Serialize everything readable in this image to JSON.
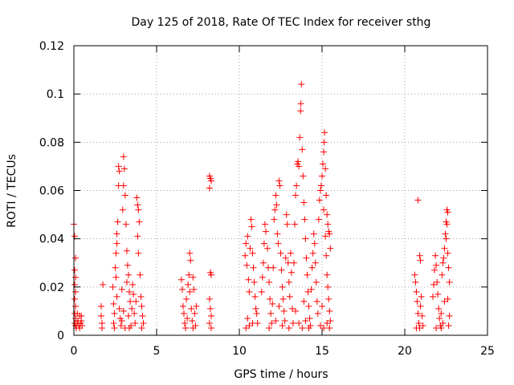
{
  "chart_data": {
    "type": "scatter",
    "title": "Day 125 of 2018, Rate Of TEC Index for receiver sthg",
    "xlabel": "GPS time / hours",
    "ylabel": "ROTI / TECUs",
    "xlim": [
      0,
      25
    ],
    "ylim": [
      0,
      0.12
    ],
    "xticks": [
      0,
      5,
      10,
      15,
      20,
      25
    ],
    "xtick_labels": [
      "0",
      "5",
      "10",
      "15",
      "20",
      "25"
    ],
    "yticks": [
      0,
      0.02,
      0.04,
      0.06,
      0.08,
      0.1,
      0.12
    ],
    "ytick_labels": [
      "0",
      "0.02",
      "0.04",
      "0.06",
      "0.08",
      "0.1",
      "0.12"
    ],
    "grid": true,
    "marker": "+",
    "color": "#ff0000",
    "series": [
      {
        "name": "ROTI",
        "points": [
          [
            0.0,
            0.046
          ],
          [
            0.05,
            0.041
          ],
          [
            0.1,
            0.032
          ],
          [
            0.05,
            0.027
          ],
          [
            0.1,
            0.024
          ],
          [
            0.05,
            0.021
          ],
          [
            0.1,
            0.018
          ],
          [
            0.05,
            0.015
          ],
          [
            0.1,
            0.012
          ],
          [
            0.05,
            0.009
          ],
          [
            0.1,
            0.007
          ],
          [
            0.05,
            0.005
          ],
          [
            0.1,
            0.004
          ],
          [
            0.15,
            0.003
          ],
          [
            0.2,
            0.009
          ],
          [
            0.25,
            0.006
          ],
          [
            0.3,
            0.004
          ],
          [
            0.35,
            0.008
          ],
          [
            0.4,
            0.005
          ],
          [
            0.45,
            0.006
          ],
          [
            0.5,
            0.004
          ],
          [
            0.45,
            0.008
          ],
          [
            0.35,
            0.003
          ],
          [
            0.2,
            0.005
          ],
          [
            1.65,
            0.012
          ],
          [
            1.65,
            0.008
          ],
          [
            1.7,
            0.005
          ],
          [
            1.75,
            0.021
          ],
          [
            1.7,
            0.003
          ],
          [
            2.35,
            0.02
          ],
          [
            2.4,
            0.013
          ],
          [
            2.45,
            0.009
          ],
          [
            2.4,
            0.005
          ],
          [
            2.45,
            0.003
          ],
          [
            2.5,
            0.028
          ],
          [
            2.55,
            0.034
          ],
          [
            2.6,
            0.038
          ],
          [
            2.6,
            0.042
          ],
          [
            2.65,
            0.047
          ],
          [
            2.55,
            0.024
          ],
          [
            2.6,
            0.016
          ],
          [
            2.7,
            0.07
          ],
          [
            2.75,
            0.068
          ],
          [
            2.7,
            0.062
          ],
          [
            2.75,
            0.011
          ],
          [
            2.8,
            0.007
          ],
          [
            2.85,
            0.004
          ],
          [
            2.9,
            0.019
          ],
          [
            2.95,
            0.052
          ],
          [
            3.0,
            0.062
          ],
          [
            3.0,
            0.074
          ],
          [
            3.05,
            0.069
          ],
          [
            3.1,
            0.058
          ],
          [
            3.15,
            0.046
          ],
          [
            3.2,
            0.035
          ],
          [
            3.25,
            0.029
          ],
          [
            3.3,
            0.025
          ],
          [
            3.2,
            0.022
          ],
          [
            3.35,
            0.018
          ],
          [
            3.4,
            0.014
          ],
          [
            3.3,
            0.008
          ],
          [
            3.45,
            0.004
          ],
          [
            3.35,
            0.003
          ],
          [
            3.5,
            0.011
          ],
          [
            3.55,
            0.021
          ],
          [
            3.6,
            0.017
          ],
          [
            3.65,
            0.009
          ],
          [
            3.7,
            0.005
          ],
          [
            3.75,
            0.014
          ],
          [
            3.8,
            0.057
          ],
          [
            3.85,
            0.054
          ],
          [
            3.9,
            0.052
          ],
          [
            3.95,
            0.047
          ],
          [
            3.85,
            0.041
          ],
          [
            3.9,
            0.034
          ],
          [
            4.0,
            0.025
          ],
          [
            4.05,
            0.016
          ],
          [
            4.1,
            0.012
          ],
          [
            4.15,
            0.008
          ],
          [
            4.2,
            0.005
          ],
          [
            4.1,
            0.003
          ],
          [
            3.0,
            0.01
          ],
          [
            3.1,
            0.003
          ],
          [
            2.9,
            0.006
          ],
          [
            6.5,
            0.023
          ],
          [
            6.55,
            0.019
          ],
          [
            6.6,
            0.012
          ],
          [
            6.65,
            0.009
          ],
          [
            6.7,
            0.005
          ],
          [
            6.75,
            0.003
          ],
          [
            6.8,
            0.015
          ],
          [
            6.85,
            0.007
          ],
          [
            6.9,
            0.021
          ],
          [
            6.95,
            0.025
          ],
          [
            7.0,
            0.034
          ],
          [
            7.05,
            0.031
          ],
          [
            7.0,
            0.018
          ],
          [
            7.1,
            0.011
          ],
          [
            7.15,
            0.006
          ],
          [
            7.2,
            0.024
          ],
          [
            7.25,
            0.019
          ],
          [
            7.3,
            0.009
          ],
          [
            7.35,
            0.004
          ],
          [
            7.4,
            0.012
          ],
          [
            7.2,
            0.003
          ],
          [
            8.2,
            0.066
          ],
          [
            8.25,
            0.065
          ],
          [
            8.3,
            0.064
          ],
          [
            8.2,
            0.061
          ],
          [
            8.25,
            0.026
          ],
          [
            8.3,
            0.025
          ],
          [
            8.2,
            0.015
          ],
          [
            8.25,
            0.011
          ],
          [
            8.3,
            0.008
          ],
          [
            8.2,
            0.005
          ],
          [
            8.3,
            0.003
          ],
          [
            10.35,
            0.033
          ],
          [
            10.4,
            0.038
          ],
          [
            10.45,
            0.029
          ],
          [
            10.5,
            0.041
          ],
          [
            10.55,
            0.023
          ],
          [
            10.6,
            0.018
          ],
          [
            10.65,
            0.036
          ],
          [
            10.7,
            0.048
          ],
          [
            10.75,
            0.045
          ],
          [
            10.8,
            0.034
          ],
          [
            10.85,
            0.028
          ],
          [
            10.9,
            0.022
          ],
          [
            10.95,
            0.016
          ],
          [
            11.0,
            0.011
          ],
          [
            10.5,
            0.007
          ],
          [
            10.6,
            0.004
          ],
          [
            10.4,
            0.003
          ],
          [
            10.8,
            0.005
          ],
          [
            11.05,
            0.009
          ],
          [
            11.1,
            0.005
          ],
          [
            11.35,
            0.018
          ],
          [
            11.4,
            0.024
          ],
          [
            11.45,
            0.03
          ],
          [
            11.5,
            0.038
          ],
          [
            11.55,
            0.046
          ],
          [
            11.6,
            0.043
          ],
          [
            11.7,
            0.036
          ],
          [
            11.75,
            0.028
          ],
          [
            11.8,
            0.022
          ],
          [
            11.85,
            0.015
          ],
          [
            11.9,
            0.009
          ],
          [
            11.95,
            0.005
          ],
          [
            12.0,
            0.013
          ],
          [
            12.05,
            0.028
          ],
          [
            12.1,
            0.048
          ],
          [
            12.15,
            0.052
          ],
          [
            12.2,
            0.058
          ],
          [
            12.25,
            0.054
          ],
          [
            12.3,
            0.042
          ],
          [
            12.35,
            0.038
          ],
          [
            12.4,
            0.064
          ],
          [
            12.45,
            0.062
          ],
          [
            12.5,
            0.034
          ],
          [
            12.55,
            0.027
          ],
          [
            12.6,
            0.02
          ],
          [
            12.65,
            0.015
          ],
          [
            12.7,
            0.01
          ],
          [
            12.75,
            0.006
          ],
          [
            12.8,
            0.032
          ],
          [
            12.85,
            0.05
          ],
          [
            12.9,
            0.046
          ],
          [
            12.95,
            0.03
          ],
          [
            13.0,
            0.022
          ],
          [
            13.05,
            0.016
          ],
          [
            13.1,
            0.034
          ],
          [
            13.15,
            0.026
          ],
          [
            13.2,
            0.011
          ],
          [
            13.25,
            0.005
          ],
          [
            12.2,
            0.006
          ],
          [
            11.8,
            0.003
          ],
          [
            12.6,
            0.004
          ],
          [
            13.0,
            0.003
          ],
          [
            12.4,
            0.012
          ],
          [
            13.3,
            0.03
          ],
          [
            13.35,
            0.046
          ],
          [
            13.4,
            0.058
          ],
          [
            13.45,
            0.062
          ],
          [
            13.5,
            0.071
          ],
          [
            13.55,
            0.072
          ],
          [
            13.6,
            0.07
          ],
          [
            13.65,
            0.082
          ],
          [
            13.7,
            0.093
          ],
          [
            13.72,
            0.096
          ],
          [
            13.75,
            0.104
          ],
          [
            13.8,
            0.077
          ],
          [
            13.85,
            0.066
          ],
          [
            13.9,
            0.055
          ],
          [
            13.95,
            0.048
          ],
          [
            14.0,
            0.04
          ],
          [
            14.05,
            0.032
          ],
          [
            14.1,
            0.025
          ],
          [
            14.15,
            0.018
          ],
          [
            14.2,
            0.012
          ],
          [
            14.25,
            0.007
          ],
          [
            14.3,
            0.004
          ],
          [
            14.35,
            0.019
          ],
          [
            14.4,
            0.028
          ],
          [
            14.45,
            0.034
          ],
          [
            14.5,
            0.042
          ],
          [
            14.55,
            0.038
          ],
          [
            14.6,
            0.03
          ],
          [
            14.65,
            0.022
          ],
          [
            14.7,
            0.014
          ],
          [
            14.75,
            0.009
          ],
          [
            13.6,
            0.005
          ],
          [
            13.8,
            0.003
          ],
          [
            14.0,
            0.006
          ],
          [
            13.4,
            0.01
          ],
          [
            13.9,
            0.014
          ],
          [
            14.2,
            0.003
          ],
          [
            14.8,
            0.048
          ],
          [
            14.85,
            0.056
          ],
          [
            14.9,
            0.06
          ],
          [
            14.95,
            0.062
          ],
          [
            15.0,
            0.066
          ],
          [
            15.05,
            0.071
          ],
          [
            15.1,
            0.076
          ],
          [
            15.12,
            0.08
          ],
          [
            15.15,
            0.084
          ],
          [
            15.2,
            0.069
          ],
          [
            15.25,
            0.058
          ],
          [
            15.3,
            0.05
          ],
          [
            15.35,
            0.046
          ],
          [
            15.4,
            0.043
          ],
          [
            15.45,
            0.042
          ],
          [
            15.5,
            0.036
          ],
          [
            15.1,
            0.052
          ],
          [
            15.2,
            0.041
          ],
          [
            15.25,
            0.033
          ],
          [
            15.3,
            0.025
          ],
          [
            15.35,
            0.02
          ],
          [
            15.4,
            0.015
          ],
          [
            15.45,
            0.01
          ],
          [
            15.5,
            0.006
          ],
          [
            14.9,
            0.004
          ],
          [
            15.1,
            0.003
          ],
          [
            15.3,
            0.005
          ],
          [
            15.0,
            0.012
          ],
          [
            15.45,
            0.003
          ],
          [
            20.6,
            0.025
          ],
          [
            20.65,
            0.022
          ],
          [
            20.7,
            0.018
          ],
          [
            20.75,
            0.014
          ],
          [
            20.8,
            0.009
          ],
          [
            20.85,
            0.005
          ],
          [
            20.9,
            0.003
          ],
          [
            20.95,
            0.012
          ],
          [
            20.8,
            0.056
          ],
          [
            20.9,
            0.033
          ],
          [
            20.95,
            0.031
          ],
          [
            21.0,
            0.016
          ],
          [
            21.05,
            0.008
          ],
          [
            21.1,
            0.004
          ],
          [
            20.7,
            0.003
          ],
          [
            21.7,
            0.016
          ],
          [
            21.75,
            0.021
          ],
          [
            21.8,
            0.027
          ],
          [
            21.85,
            0.033
          ],
          [
            21.9,
            0.029
          ],
          [
            21.95,
            0.022
          ],
          [
            22.0,
            0.017
          ],
          [
            22.05,
            0.011
          ],
          [
            22.1,
            0.007
          ],
          [
            22.15,
            0.004
          ],
          [
            22.2,
            0.009
          ],
          [
            22.25,
            0.025
          ],
          [
            22.3,
            0.03
          ],
          [
            22.35,
            0.032
          ],
          [
            22.4,
            0.036
          ],
          [
            22.45,
            0.042
          ],
          [
            22.5,
            0.047
          ],
          [
            22.55,
            0.052
          ],
          [
            22.6,
            0.051
          ],
          [
            22.55,
            0.046
          ],
          [
            22.5,
            0.04
          ],
          [
            22.6,
            0.034
          ],
          [
            22.65,
            0.028
          ],
          [
            22.7,
            0.022
          ],
          [
            22.6,
            0.015
          ],
          [
            22.7,
            0.008
          ],
          [
            22.65,
            0.004
          ],
          [
            22.3,
            0.005
          ],
          [
            21.9,
            0.003
          ],
          [
            22.4,
            0.014
          ],
          [
            22.2,
            0.003
          ]
        ]
      }
    ]
  }
}
